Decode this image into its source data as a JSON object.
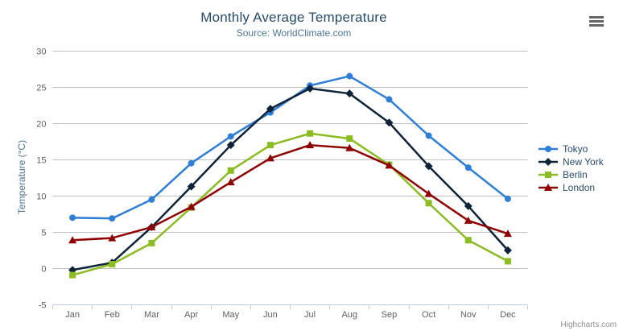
{
  "chart": {
    "credits": "Highcharts.com",
    "menu_icon": "hamburger-icon"
  },
  "colors": {
    "background": "#ffffff",
    "title": "#274b6d",
    "subtitle": "#4d759e",
    "axis_title": "#4d759e",
    "axis_labels": "#606060",
    "grid_line": "#c0c0c0",
    "axis_line": "#c0d0e0",
    "legend_text": "#274b6d",
    "credits": "#909090",
    "menu_icon": "#666666"
  },
  "chart_data": {
    "type": "line",
    "title": "Monthly Average Temperature",
    "subtitle": "Source: WorldClimate.com",
    "xlabel": "",
    "ylabel": "Temperature (°C)",
    "ylim": [
      -5,
      30
    ],
    "ytick_step": 5,
    "grid": true,
    "legend_position": "right",
    "categories": [
      "Jan",
      "Feb",
      "Mar",
      "Apr",
      "May",
      "Jun",
      "Jul",
      "Aug",
      "Sep",
      "Oct",
      "Nov",
      "Dec"
    ],
    "series": [
      {
        "name": "Tokyo",
        "color": "#2f7ed8",
        "marker": "circle",
        "values": [
          7.0,
          6.9,
          9.5,
          14.5,
          18.2,
          21.5,
          25.2,
          26.5,
          23.3,
          18.3,
          13.9,
          9.6
        ]
      },
      {
        "name": "New York",
        "color": "#0d233a",
        "marker": "diamond",
        "values": [
          -0.2,
          0.8,
          5.7,
          11.3,
          17.0,
          22.0,
          24.8,
          24.1,
          20.1,
          14.1,
          8.6,
          2.5
        ]
      },
      {
        "name": "Berlin",
        "color": "#8bbc21",
        "marker": "square",
        "values": [
          -0.9,
          0.6,
          3.5,
          8.4,
          13.5,
          17.0,
          18.6,
          17.9,
          14.3,
          9.0,
          3.9,
          1.0
        ]
      },
      {
        "name": "London",
        "color": "#910000",
        "marker": "triangle",
        "values": [
          3.9,
          4.2,
          5.7,
          8.5,
          11.9,
          15.2,
          17.0,
          16.6,
          14.2,
          10.3,
          6.6,
          4.8
        ]
      }
    ]
  }
}
